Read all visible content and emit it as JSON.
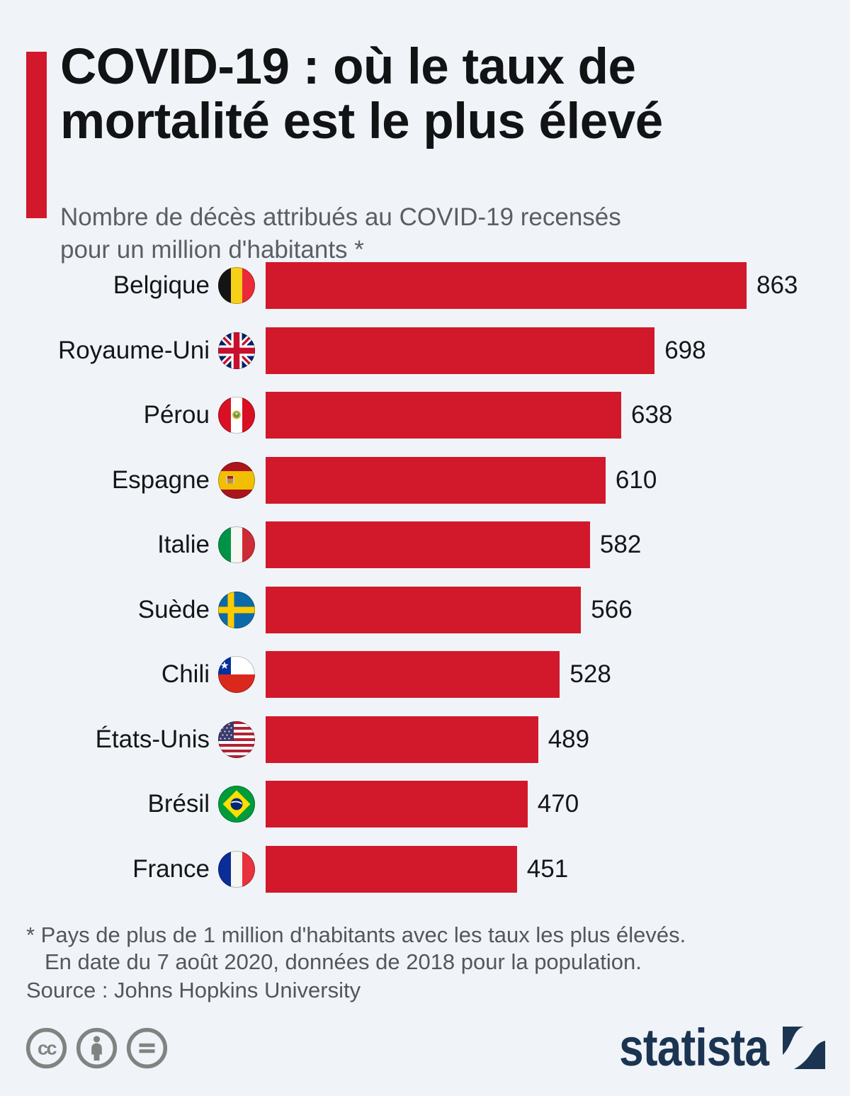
{
  "header": {
    "title_lines": [
      "COVID-19 : où le taux de",
      "mortalité est le plus élevé"
    ],
    "subtitle_lines": [
      "Nombre de décès attribués au COVID-19 recensés",
      "pour un million d'habitants *"
    ]
  },
  "chart_data": {
    "type": "bar",
    "orientation": "horizontal",
    "title": "COVID-19 : où le taux de mortalité est le plus élevé",
    "subtitle": "Nombre de décès attribués au COVID-19 recensés pour un million d'habitants *",
    "categories": [
      "Belgique",
      "Royaume-Uni",
      "Pérou",
      "Espagne",
      "Italie",
      "Suède",
      "Chili",
      "États-Unis",
      "Brésil",
      "France"
    ],
    "values": [
      863,
      698,
      638,
      610,
      582,
      566,
      528,
      489,
      470,
      451
    ],
    "bar_color": "#D2182B",
    "value_labels_shown": true,
    "axis_shown": false,
    "rows": [
      {
        "country": "Belgique",
        "flag": "belgique",
        "value": 863
      },
      {
        "country": "Royaume-Uni",
        "flag": "royaume-uni",
        "value": 698
      },
      {
        "country": "Pérou",
        "flag": "perou",
        "value": 638
      },
      {
        "country": "Espagne",
        "flag": "espagne",
        "value": 610
      },
      {
        "country": "Italie",
        "flag": "italie",
        "value": 582
      },
      {
        "country": "Suède",
        "flag": "suede",
        "value": 566
      },
      {
        "country": "Chili",
        "flag": "chili",
        "value": 528
      },
      {
        "country": "États-Unis",
        "flag": "etats-unis",
        "value": 489
      },
      {
        "country": "Brésil",
        "flag": "bresil",
        "value": 470
      },
      {
        "country": "France",
        "flag": "france",
        "value": 451
      }
    ]
  },
  "footnote": {
    "line1": "* Pays de plus de 1 million d'habitants avec les taux les plus élevés.",
    "line2": "En date du 7 août 2020, données de 2018 pour la population.",
    "source": "Source : Johns Hopkins University"
  },
  "footer": {
    "brand": "statista",
    "license_icons": [
      "cc",
      "by",
      "nd"
    ]
  },
  "colors": {
    "background": "#F0F4F8",
    "accent_red": "#D2182B",
    "title_text": "#111315",
    "muted_text": "#53575A",
    "brand_navy": "#1B3451",
    "license_gray": "#7E8480"
  }
}
